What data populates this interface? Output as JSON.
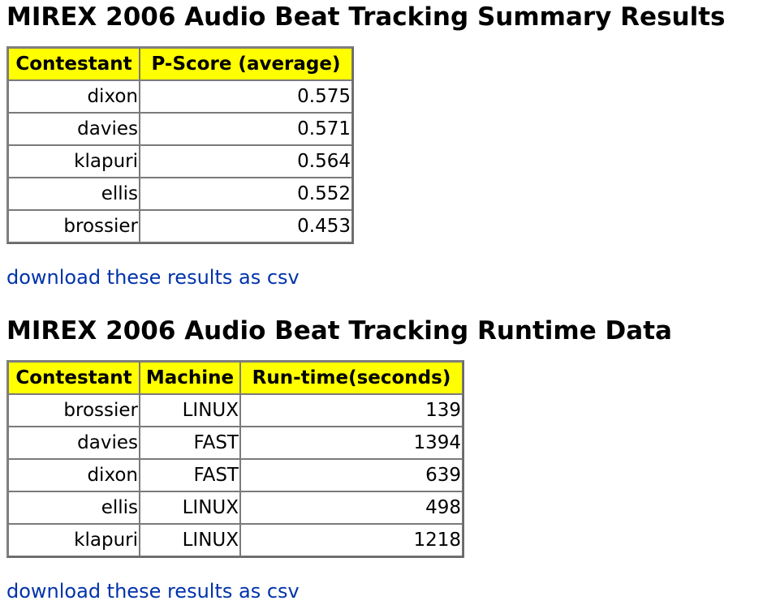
{
  "summary": {
    "title": "MIREX 2006 Audio Beat Tracking Summary Results",
    "headers": [
      "Contestant",
      "P-Score (average)"
    ],
    "rows": [
      [
        "dixon",
        "0.575"
      ],
      [
        "davies",
        "0.571"
      ],
      [
        "klapuri",
        "0.564"
      ],
      [
        "ellis",
        "0.552"
      ],
      [
        "brossier",
        "0.453"
      ]
    ],
    "link": "download these results as csv"
  },
  "runtime": {
    "title": "MIREX 2006 Audio Beat Tracking Runtime Data",
    "headers": [
      "Contestant",
      "Machine",
      "Run-time(seconds)"
    ],
    "rows": [
      [
        "brossier",
        "LINUX",
        "139"
      ],
      [
        "davies",
        "FAST",
        "1394"
      ],
      [
        "dixon",
        "FAST",
        "639"
      ],
      [
        "ellis",
        "LINUX",
        "498"
      ],
      [
        "klapuri",
        "LINUX",
        "1218"
      ]
    ],
    "link": "download these results as csv"
  },
  "colors": {
    "header_bg": "#ffff00",
    "link": "#0033aa",
    "border": "#808080"
  }
}
